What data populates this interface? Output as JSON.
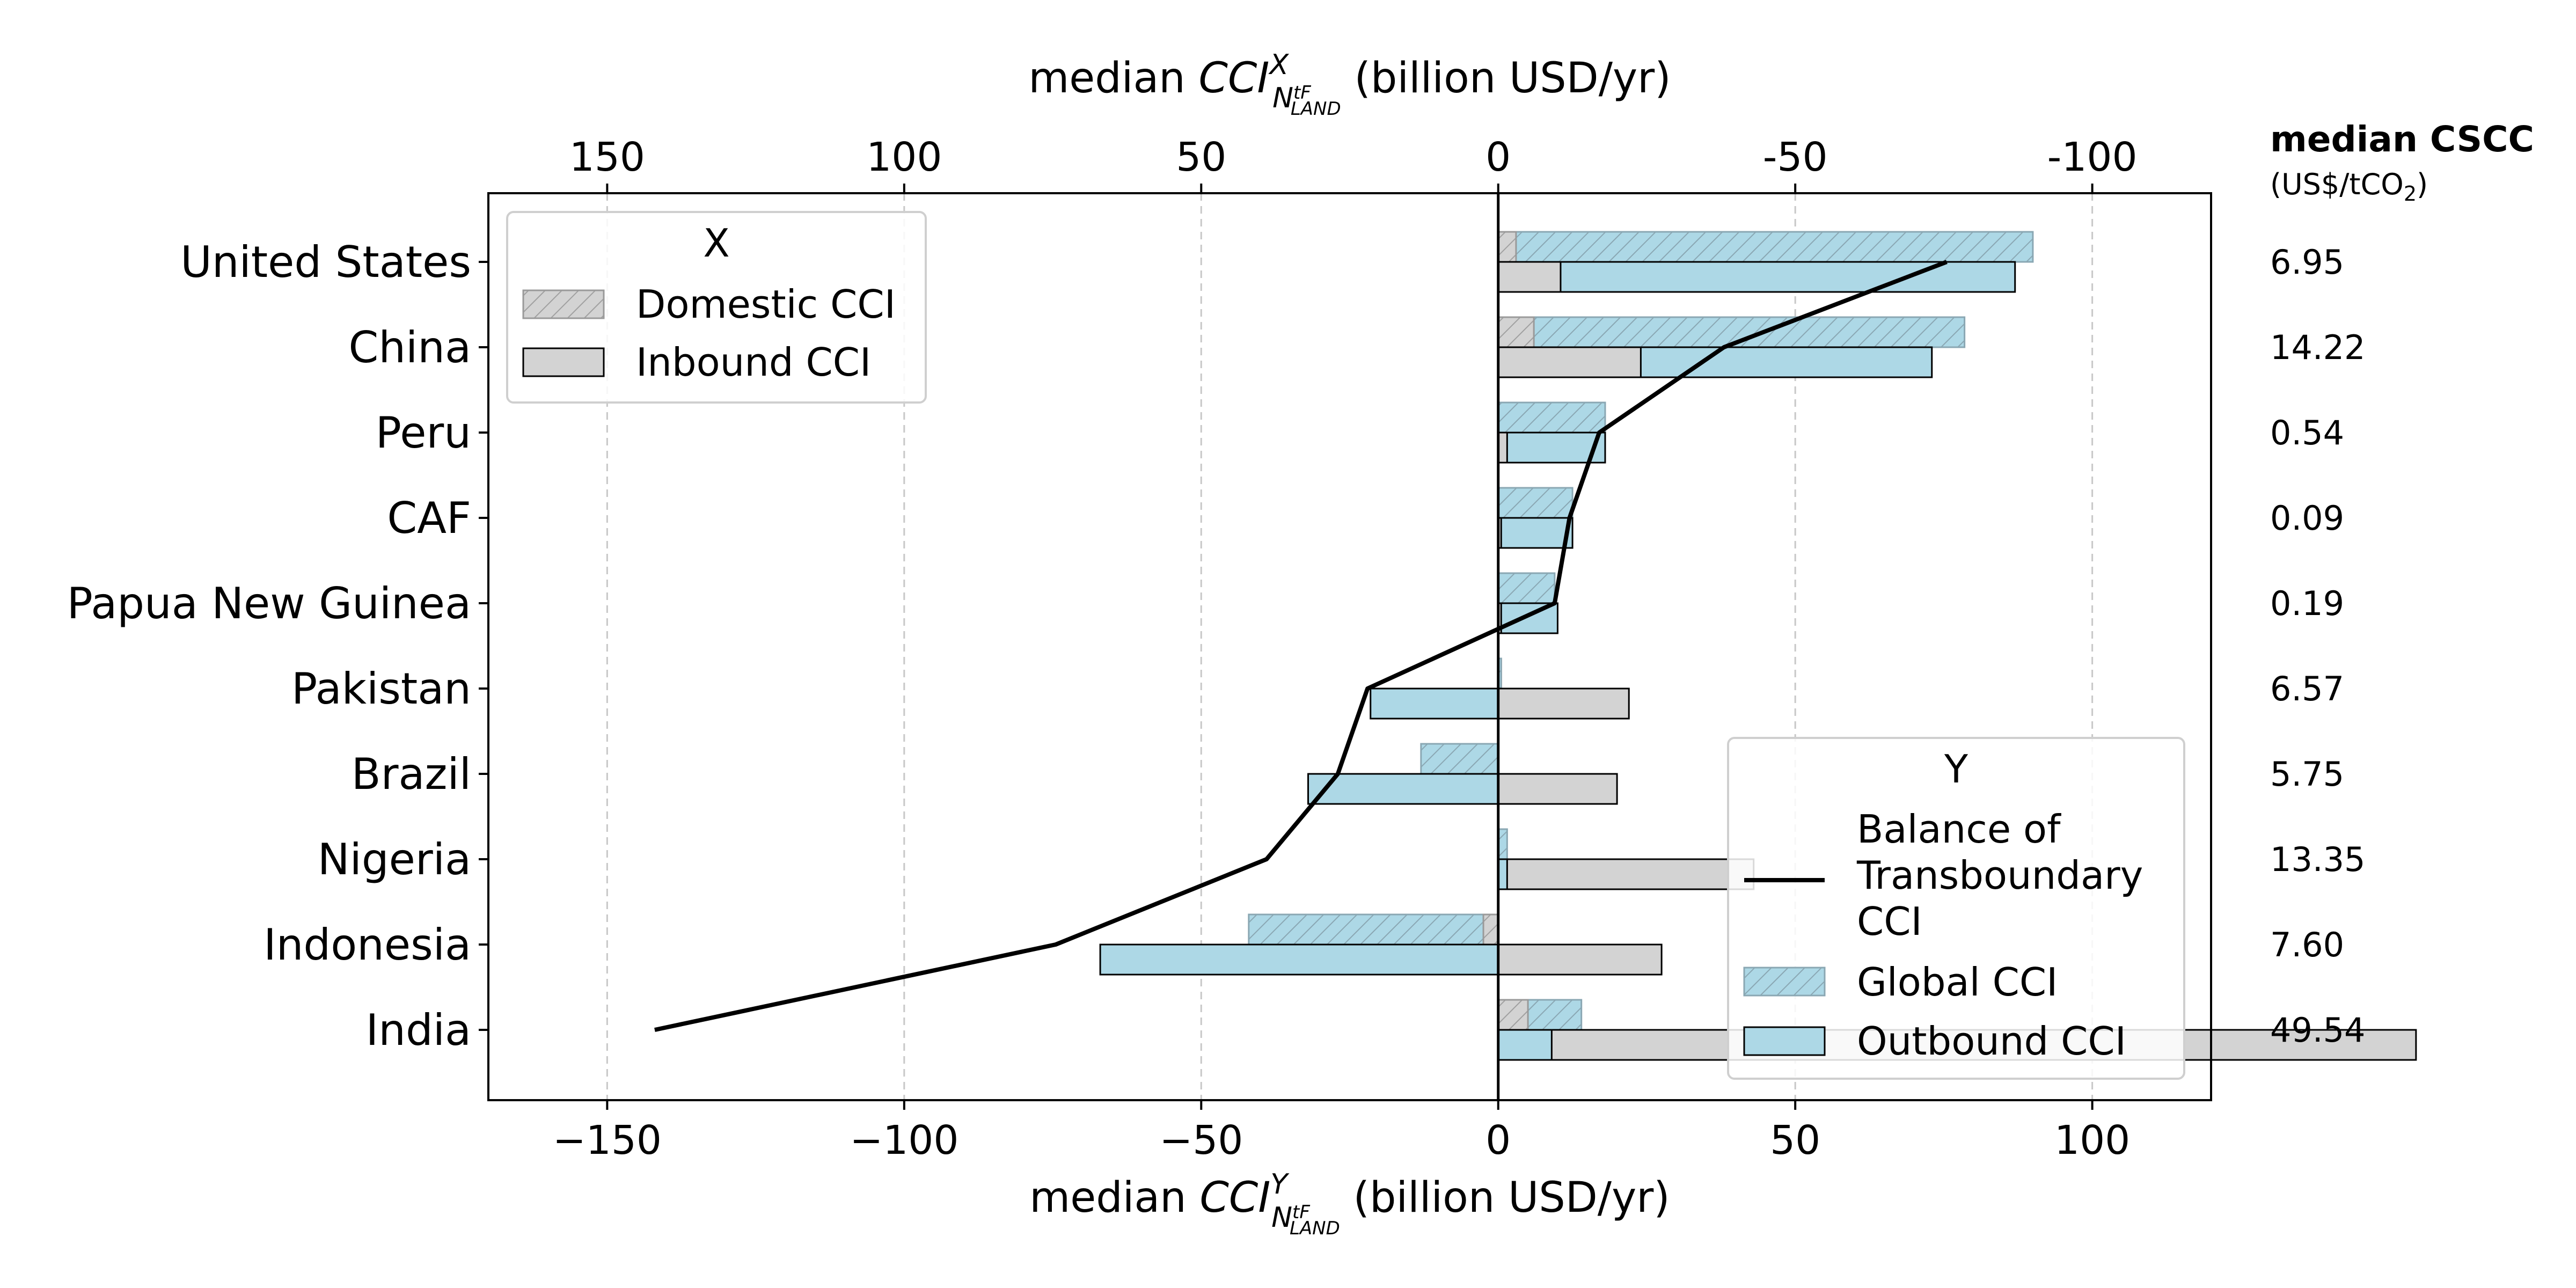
{
  "chart_data": {
    "type": "bar",
    "orientation": "horizontal",
    "categories": [
      "United States",
      "China",
      "Peru",
      "CAF",
      "Papua New Guinea",
      "Pakistan",
      "Brazil",
      "Nigeria",
      "Indonesia",
      "India"
    ],
    "series": [
      {
        "name": "Domestic CCI",
        "group": "X",
        "values": [
          3,
          6,
          0,
          0,
          0,
          0.5,
          0,
          0,
          -2.5,
          5
        ]
      },
      {
        "name": "Inbound CCI",
        "group": "X",
        "values": [
          10.5,
          24,
          1.5,
          0.5,
          0.5,
          22,
          20,
          43,
          27.5,
          154.5
        ]
      },
      {
        "name": "Global CCI",
        "group": "Y",
        "values": [
          90,
          78.5,
          18,
          12.5,
          9.5,
          0.5,
          -13,
          1.5,
          -42,
          14
        ]
      },
      {
        "name": "Outbound CCI",
        "group": "Y",
        "values": [
          87,
          73,
          18,
          12.5,
          10,
          -21.5,
          -32,
          1.5,
          -67,
          9
        ]
      },
      {
        "name": "Balance of Transboundary CCI",
        "group": "Y",
        "type": "line",
        "values": [
          75.5,
          38,
          17,
          12,
          9.5,
          -22,
          -27,
          -39,
          -74.5,
          -142
        ]
      }
    ],
    "x_bottom": {
      "label_prefix": "median ",
      "label_italic": "CCI",
      "label_sup": "Y",
      "label_sub": "N",
      "label_subsup": "tF",
      "label_subsub": "LAND",
      "label_suffix": " (billion USD/yr)",
      "range": [
        -170,
        120
      ],
      "ticks": [
        -150,
        -100,
        -50,
        0,
        50,
        100
      ],
      "tick_labels": [
        "−150",
        "−100",
        "−50",
        "0",
        "50",
        "100"
      ]
    },
    "x_top": {
      "label_prefix": "median ",
      "label_italic": "CCI",
      "label_sup": "X",
      "label_sub": "N",
      "label_subsup": "tF",
      "label_subsub": "LAND",
      "label_suffix": " (billion USD/yr)",
      "inverted": true,
      "ticks": [
        -150,
        -100,
        -50,
        0,
        50,
        100
      ],
      "tick_labels": [
        "150",
        "100",
        "50",
        "0",
        "-50",
        "-100"
      ]
    },
    "grid": "vertical-dashed",
    "legend_x": {
      "title": "X",
      "entries": [
        "Domestic CCI",
        "Inbound CCI"
      ],
      "position": "top-left"
    },
    "legend_y": {
      "title": "Y",
      "entries": [
        "Balance of\nTransboundary\nCCI",
        "Global CCI",
        "Outbound CCI"
      ],
      "position": "bottom-right"
    },
    "cscc": {
      "title": "median CSCC",
      "unit_prefix": "(US$/tCO",
      "unit_sub": "2",
      "unit_suffix": ")",
      "values": [
        "6.95",
        "14.22",
        "0.54",
        "0.09",
        "0.19",
        "6.57",
        "5.75",
        "13.35",
        "7.60",
        "49.54"
      ]
    },
    "colors": {
      "blue": "#add8e6",
      "gray": "#d3d3d3",
      "line": "#000000",
      "hatch_gray": "#a0a0a0",
      "hatch_blue": "#8aa7b3"
    }
  }
}
